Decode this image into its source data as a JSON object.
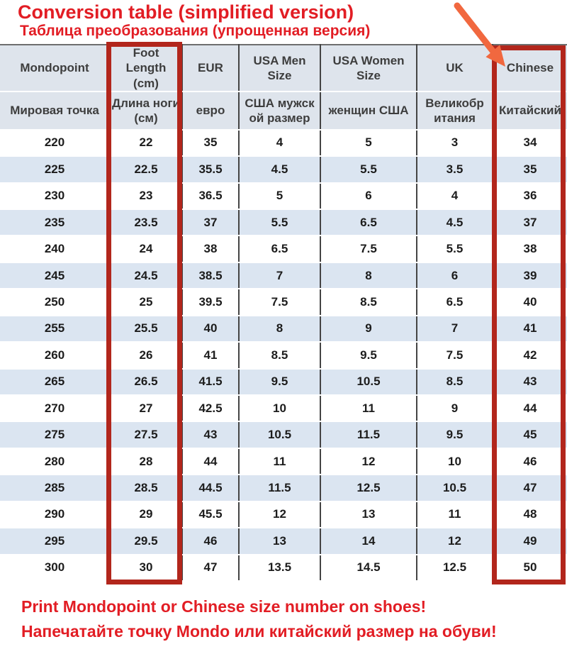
{
  "title": "Conversion table (simplified version)",
  "subtitle": "Таблица преобразования (упрощенная версия)",
  "footer": {
    "line1": "Print Mondopoint or Chinese size number on shoes!",
    "line2": "Напечатайте точку Mondo или китайский размер на обуви!"
  },
  "colors": {
    "title_red": "#e21d24",
    "box_red": "#b2261c",
    "arrow_orange": "#f1683f",
    "header_bg": "#dee4ec",
    "alt_row_bg": "#dbe5f1",
    "border_dark": "#444444",
    "header_text": "#3d3d3d",
    "cell_text": "#1c1c1c"
  },
  "annotations": {
    "highlighted_columns": [
      "Foot Length (cm)",
      "Chinese"
    ],
    "arrow_icon": "arrow-pointing-to-chinese-column"
  },
  "table": {
    "headers_en": [
      "Mondopoint",
      "Foot Length\n(cm)",
      "EUR",
      "USA Men\nSize",
      "USA Women Size",
      "UK",
      "Chinese"
    ],
    "headers_ru": [
      "Мировая точка",
      "Длина ноги\n(см)",
      "евро",
      "США мужск\nой размер",
      "женщин США",
      "Великобр\nитания",
      "Китайский"
    ],
    "rows": [
      [
        220,
        22,
        35,
        4,
        5,
        3,
        34
      ],
      [
        225,
        22.5,
        35.5,
        4.5,
        5.5,
        3.5,
        35
      ],
      [
        230,
        23,
        36.5,
        5,
        6,
        4,
        36
      ],
      [
        235,
        23.5,
        37,
        5.5,
        6.5,
        4.5,
        37
      ],
      [
        240,
        24,
        38,
        6.5,
        7.5,
        5.5,
        38
      ],
      [
        245,
        24.5,
        38.5,
        7,
        8,
        6,
        39
      ],
      [
        250,
        25,
        39.5,
        7.5,
        8.5,
        6.5,
        40
      ],
      [
        255,
        25.5,
        40,
        8,
        9,
        7,
        41
      ],
      [
        260,
        26,
        41,
        8.5,
        9.5,
        7.5,
        42
      ],
      [
        265,
        26.5,
        41.5,
        9.5,
        10.5,
        8.5,
        43
      ],
      [
        270,
        27,
        42.5,
        10,
        11,
        9,
        44
      ],
      [
        275,
        27.5,
        43,
        10.5,
        11.5,
        9.5,
        45
      ],
      [
        280,
        28,
        44,
        11,
        12,
        10,
        46
      ],
      [
        285,
        28.5,
        44.5,
        11.5,
        12.5,
        10.5,
        47
      ],
      [
        290,
        29,
        45.5,
        12,
        13,
        11,
        48
      ],
      [
        295,
        29.5,
        46,
        13,
        14,
        12,
        49
      ],
      [
        300,
        30,
        47,
        13.5,
        14.5,
        12.5,
        50
      ]
    ]
  }
}
